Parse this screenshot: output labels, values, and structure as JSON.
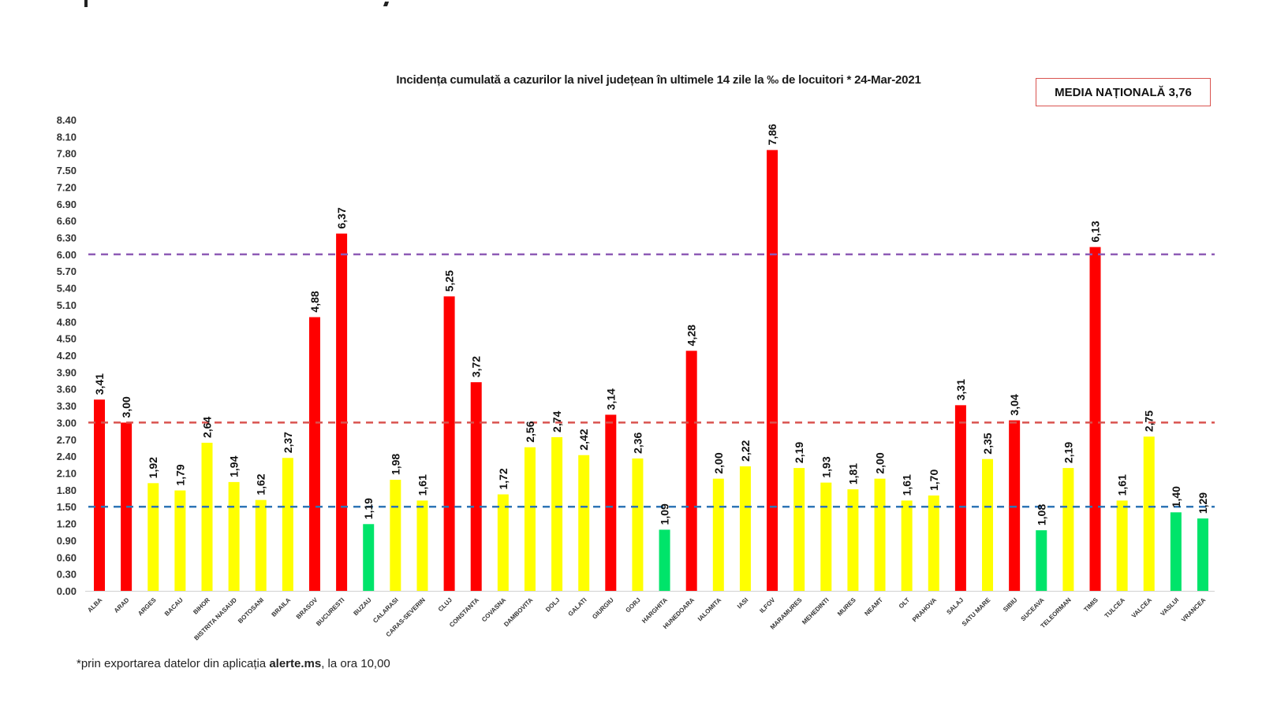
{
  "chart_data": {
    "type": "bar",
    "title": "Incidența cumulată a cazurilor la nivel județean în ultimele 14 zile la ‰ de locuitori *  24-Mar-2021",
    "xlabel": "",
    "ylabel": "",
    "ylim": [
      0,
      8.4
    ],
    "yticks": [
      "0.00",
      "0.30",
      "0.60",
      "0.90",
      "1.20",
      "1.50",
      "1.80",
      "2.10",
      "2.40",
      "2.70",
      "3.00",
      "3.30",
      "3.60",
      "3.90",
      "4.20",
      "4.50",
      "4.80",
      "5.10",
      "5.40",
      "5.70",
      "6.00",
      "6.30",
      "6.60",
      "6.90",
      "7.20",
      "7.50",
      "7.80",
      "8.10",
      "8.40"
    ],
    "grid": false,
    "categories": [
      "ALBA",
      "ARAD",
      "ARGES",
      "BACAU",
      "BIHOR",
      "BISTRITA NASAUD",
      "BOTOSANI",
      "BRAILA",
      "BRASOV",
      "BUCURESTI",
      "BUZAU",
      "CALARASI",
      "CARAS-SEVERIN",
      "CLUJ",
      "CONSTANTA",
      "COVASNA",
      "DAMBOVITA",
      "DOLJ",
      "GALATI",
      "GIURGIU",
      "GORJ",
      "HARGHITA",
      "HUNEDOARA",
      "IALOMITA",
      "IASI",
      "ILFOV",
      "MARAMURES",
      "MEHEDINTI",
      "MURES",
      "NEAMT",
      "OLT",
      "PRAHOVA",
      "SALAJ",
      "SATU MARE",
      "SIBIU",
      "SUCEAVA",
      "TELEORMAN",
      "TIMIS",
      "TULCEA",
      "VALCEA",
      "VASLUI",
      "VRANCEA"
    ],
    "values": [
      3.41,
      3.0,
      1.92,
      1.79,
      2.64,
      1.94,
      1.62,
      2.37,
      4.88,
      6.37,
      1.19,
      1.98,
      1.61,
      5.25,
      3.72,
      1.72,
      2.56,
      2.74,
      2.42,
      3.14,
      2.36,
      1.09,
      4.28,
      2.0,
      2.22,
      7.86,
      2.19,
      1.93,
      1.81,
      2.0,
      1.61,
      1.7,
      3.31,
      2.35,
      3.04,
      1.08,
      2.19,
      6.13,
      1.61,
      2.75,
      1.4,
      1.29
    ],
    "value_labels": [
      "3,41",
      "3,00",
      "1,92",
      "1,79",
      "2,64",
      "1,94",
      "1,62",
      "2,37",
      "4,88",
      "6,37",
      "1,19",
      "1,98",
      "1,61",
      "5,25",
      "3,72",
      "1,72",
      "2,56",
      "2,74",
      "2,42",
      "3,14",
      "2,36",
      "1,09",
      "4,28",
      "2,00",
      "2,22",
      "7,86",
      "2,19",
      "1,93",
      "1,81",
      "2,00",
      "1,61",
      "1,70",
      "3,31",
      "2,35",
      "3,04",
      "1,08",
      "2,19",
      "6,13",
      "1,61",
      "2,75",
      "1,40",
      "1,29"
    ],
    "thresholds": [
      {
        "name": "6.00",
        "value": 6.0,
        "color": "#8e5bb5"
      },
      {
        "name": "3.00",
        "value": 3.0,
        "color": "#d9534f"
      },
      {
        "name": "1.50",
        "value": 1.5,
        "color": "#2e75b6"
      }
    ],
    "color_rules": {
      "high": "#ff0000",
      "medium": "#ffff00",
      "low": "#00e46a"
    },
    "legend": "none"
  },
  "annotation": {
    "media_nationala": "MEDIA NAȚIONALĂ 3,76"
  },
  "footnote": {
    "prefix": "*prin exportarea datelor din aplicația ",
    "bold": "alerte.ms",
    "suffix": ", la ora 10,00"
  }
}
